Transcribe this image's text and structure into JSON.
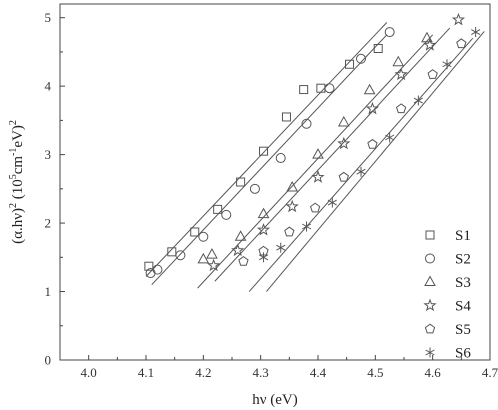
{
  "chart_data": {
    "type": "scatter",
    "xlabel": "hν (eV)",
    "ylabel_main": "(α.hν)",
    "ylabel_exp1": "2",
    "ylabel_unit_open": " (10",
    "ylabel_exp2": "5",
    "ylabel_unit_mid": "cm",
    "ylabel_exp3": "-1",
    "ylabel_unit_close": "eV)",
    "ylabel_exp4": "2",
    "xlim": [
      3.95,
      4.7
    ],
    "ylim": [
      0,
      5.2
    ],
    "xticks": [
      4.0,
      4.1,
      4.2,
      4.3,
      4.4,
      4.5,
      4.6,
      4.7
    ],
    "xtick_labels": [
      "4.0",
      "4.1",
      "4.2",
      "4.3",
      "4.4",
      "4.5",
      "4.6",
      "4.7"
    ],
    "yticks": [
      0,
      1,
      2,
      3,
      4,
      5
    ],
    "ytick_labels": [
      "0",
      "1",
      "2",
      "3",
      "4",
      "5"
    ],
    "grid": false,
    "legend_position": "lower-right",
    "series": [
      {
        "name": "S1",
        "marker": "square",
        "color": "#555555",
        "x": [
          4.105,
          4.145,
          4.185,
          4.225,
          4.265,
          4.305,
          4.345,
          4.375,
          4.405,
          4.455,
          4.505
        ],
        "y": [
          1.37,
          1.58,
          1.87,
          2.2,
          2.6,
          3.05,
          3.55,
          3.95,
          3.97,
          4.32,
          4.55
        ],
        "fit": [
          [
            4.1,
            1.22
          ],
          [
            4.52,
            4.93
          ]
        ]
      },
      {
        "name": "S2",
        "marker": "circle",
        "color": "#555555",
        "x": [
          4.108,
          4.12,
          4.16,
          4.2,
          4.24,
          4.29,
          4.335,
          4.38,
          4.42,
          4.475,
          4.525
        ],
        "y": [
          1.27,
          1.32,
          1.53,
          1.8,
          2.12,
          2.5,
          2.95,
          3.45,
          3.97,
          4.4,
          4.79
        ],
        "fit": [
          [
            4.11,
            1.1
          ],
          [
            4.52,
            4.75
          ]
        ]
      },
      {
        "name": "S3",
        "marker": "triangle",
        "color": "#555555",
        "x": [
          4.2,
          4.215,
          4.265,
          4.305,
          4.355,
          4.4,
          4.445,
          4.49,
          4.54,
          4.59
        ],
        "y": [
          1.47,
          1.54,
          1.8,
          2.13,
          2.52,
          3.0,
          3.47,
          3.94,
          4.35,
          4.7
        ],
        "fit": [
          [
            4.19,
            1.05
          ],
          [
            4.6,
            4.75
          ]
        ]
      },
      {
        "name": "S4",
        "marker": "star",
        "color": "#555555",
        "x": [
          4.218,
          4.26,
          4.305,
          4.355,
          4.4,
          4.445,
          4.495,
          4.545,
          4.595,
          4.645
        ],
        "y": [
          1.38,
          1.6,
          1.9,
          2.24,
          2.67,
          3.16,
          3.67,
          4.17,
          4.6,
          4.97
        ],
        "fit": [
          [
            4.22,
            1.15
          ],
          [
            4.63,
            4.85
          ]
        ]
      },
      {
        "name": "S5",
        "marker": "pentagon",
        "color": "#555555",
        "x": [
          4.27,
          4.305,
          4.35,
          4.395,
          4.445,
          4.495,
          4.545,
          4.6,
          4.65
        ],
        "y": [
          1.44,
          1.59,
          1.87,
          2.22,
          2.67,
          3.15,
          3.67,
          4.17,
          4.62
        ],
        "fit": [
          [
            4.28,
            1.0
          ],
          [
            4.67,
            4.7
          ]
        ]
      },
      {
        "name": "S6",
        "marker": "asterisk",
        "color": "#555555",
        "x": [
          4.305,
          4.335,
          4.38,
          4.425,
          4.475,
          4.525,
          4.575,
          4.625,
          4.675
        ],
        "y": [
          1.5,
          1.64,
          1.95,
          2.3,
          2.75,
          3.25,
          3.79,
          4.32,
          4.79
        ],
        "fit": [
          [
            4.31,
            1.0
          ],
          [
            4.69,
            4.8
          ]
        ]
      }
    ]
  }
}
